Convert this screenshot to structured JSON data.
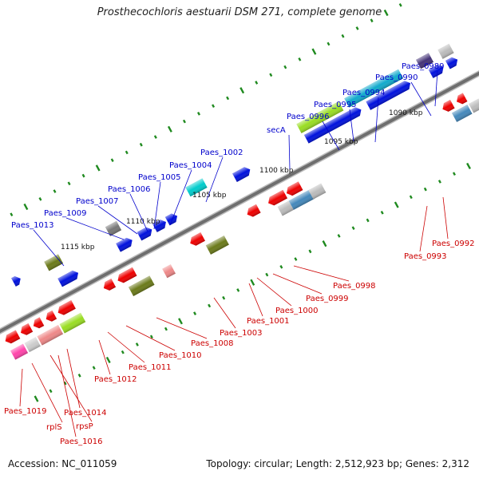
{
  "title": "Prosthecochloris aestuarii DSM 271, complete genome",
  "accession_text": "Accession: NC_011059",
  "topology_text": "Topology: circular; Length: 2,512,923 bp; Genes: 2,312",
  "colors": {
    "backbone": "#6e6e6e",
    "tick": "#1f8a1f",
    "forward_label": "#0000cc",
    "reverse_label": "#cc0000",
    "forward_gene": "#0011dd",
    "reverse_gene": "#ee0000"
  },
  "scale_labels": [
    "1090 kbp",
    "1095 kbp",
    "1100 kbp",
    "1105 kbp",
    "1110 kbp",
    "1115 kbp"
  ],
  "forward_labels": [
    "Paes_0989",
    "Paes_0990",
    "Paes_0994",
    "Paes_0995",
    "Paes_0996",
    "secA",
    "Paes_1002",
    "Paes_1004",
    "Paes_1005",
    "Paes_1006",
    "Paes_1007",
    "Paes_1009",
    "Paes_1013"
  ],
  "reverse_labels": [
    "Paes_0992",
    "Paes_0993",
    "Paes_0998",
    "Paes_0999",
    "Paes_1000",
    "Paes_1001",
    "Paes_1003",
    "Paes_1008",
    "Paes_1010",
    "Paes_1011",
    "Paes_1012",
    "Paes_1014",
    "rpsP",
    "Paes_1016",
    "rplS",
    "Paes_1019"
  ]
}
